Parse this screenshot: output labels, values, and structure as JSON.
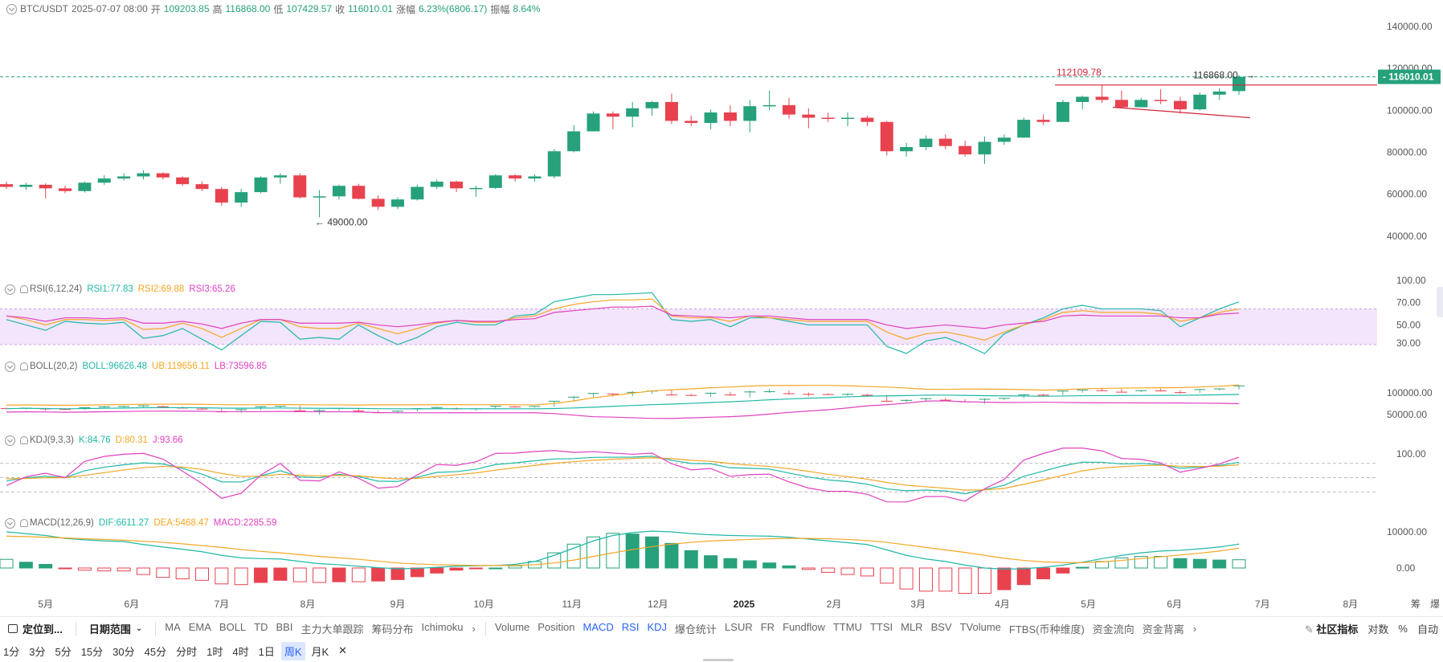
{
  "header": {
    "symbol": "BTC/USDT",
    "date": "2025-07-07 08:00",
    "open_label": "开",
    "open": "109203.85",
    "high_label": "高",
    "high": "116868.00",
    "low_label": "低",
    "low": "107429.57",
    "close_label": "收",
    "close": "116010.01",
    "change_label": "涨幅",
    "change": "6.23%(6806.17)",
    "amplitude_label": "振幅",
    "amplitude": "8.64%"
  },
  "price_axis": {
    "ticks": [
      "140000.00",
      "120000.00",
      "100000.00",
      "80000.00",
      "60000.00",
      "40000.00"
    ],
    "current_tag": "116010.01"
  },
  "annotations": {
    "high_point": "116868.00",
    "low_point": "49000.00",
    "line_level": "112109.78"
  },
  "indicators": {
    "rsi": {
      "name": "RSI(6,12,24)",
      "rsi1": "RSI1:77.83",
      "rsi2": "RSI2:69.88",
      "rsi3": "RSI3:65.26",
      "ticks": [
        "100.00",
        "70.00",
        "50.00",
        "30.00"
      ]
    },
    "boll": {
      "name": "BOLL(20,2)",
      "boll": "BOLL:96626.48",
      "ub": "UB:119656.11",
      "lb": "LB:73596.85",
      "ticks": [
        "100000.00",
        "50000.00"
      ]
    },
    "kdj": {
      "name": "KDJ(9,3,3)",
      "k": "K:84.76",
      "d": "D:80.31",
      "j": "J:93.66",
      "ticks": [
        "100.00"
      ]
    },
    "macd": {
      "name": "MACD(12,26,9)",
      "dif": "DIF:6611.27",
      "dea": "DEA:5468.47",
      "macd": "MACD:2285.59",
      "ticks": [
        "10000.00",
        "0.00"
      ]
    }
  },
  "time_axis": [
    "5月",
    "6月",
    "7月",
    "8月",
    "9月",
    "10月",
    "11月",
    "12月",
    "2025",
    "2月",
    "3月",
    "4月",
    "5月",
    "6月",
    "7月",
    "8月"
  ],
  "time_axis_right": [
    "筹",
    "爆"
  ],
  "toolbar": {
    "locate": "定位到...",
    "date_range": "日期范围",
    "overlays": [
      "MA",
      "EMA",
      "BOLL",
      "TD",
      "BBI",
      "主力大单跟踪",
      "筹码分布",
      "Ichimoku"
    ],
    "sub_indicators": [
      "Volume",
      "Position",
      "MACD",
      "RSI",
      "KDJ",
      "爆仓统计",
      "LSUR",
      "FR",
      "Fundflow",
      "TTMU",
      "TTSI",
      "MLR",
      "BSV",
      "TVolume",
      "FTBS(币种维度)",
      "资金流向",
      "资金背离"
    ],
    "active_sub": [
      "MACD",
      "RSI",
      "KDJ"
    ],
    "community": "社区指标",
    "log": "对数",
    "percent": "%",
    "auto": "自动"
  },
  "periods": [
    "1分",
    "3分",
    "5分",
    "15分",
    "30分",
    "45分",
    "分时",
    "1时",
    "4时",
    "1日",
    "周K",
    "月K"
  ],
  "active_period": "周K",
  "colors": {
    "up": "#26a17b",
    "down": "#e8424f",
    "rsi1": "#1fb8a6",
    "rsi2": "#f5a623",
    "rsi3": "#e040c0",
    "rsi_band": "#f3e5fb",
    "current_tag": "#26a17b",
    "level_line": "#d0243a"
  },
  "chart_data": {
    "type": "candlestick",
    "interval": "weekly",
    "ohlc": [
      [
        64800,
        66000,
        62500,
        63500
      ],
      [
        63500,
        65500,
        62000,
        64500
      ],
      [
        64500,
        65200,
        58000,
        62800
      ],
      [
        62800,
        64000,
        60500,
        61500
      ],
      [
        61500,
        66000,
        60800,
        65500
      ],
      [
        65500,
        69000,
        64500,
        67500
      ],
      [
        67500,
        70000,
        66500,
        68500
      ],
      [
        68500,
        71500,
        67000,
        70000
      ],
      [
        70000,
        70500,
        67000,
        68000
      ],
      [
        68000,
        68500,
        64000,
        64800
      ],
      [
        64800,
        66000,
        61500,
        62500
      ],
      [
        62500,
        63500,
        54500,
        56000
      ],
      [
        56000,
        62500,
        54000,
        61000
      ],
      [
        61000,
        68500,
        60500,
        68000
      ],
      [
        68000,
        70000,
        65000,
        69000
      ],
      [
        69000,
        70000,
        58000,
        58500
      ],
      [
        58500,
        62000,
        49000,
        59000
      ],
      [
        59000,
        64500,
        57500,
        64000
      ],
      [
        64000,
        65000,
        57500,
        57800
      ],
      [
        57800,
        59500,
        52500,
        54000
      ],
      [
        54000,
        58500,
        53000,
        57500
      ],
      [
        57500,
        64500,
        57000,
        63500
      ],
      [
        63500,
        67000,
        62500,
        66000
      ],
      [
        66000,
        66500,
        61000,
        62800
      ],
      [
        62800,
        64000,
        58800,
        63000
      ],
      [
        63000,
        69500,
        62500,
        69000
      ],
      [
        69000,
        69500,
        66000,
        67500
      ],
      [
        67500,
        69500,
        66000,
        68500
      ],
      [
        68500,
        81500,
        67500,
        80500
      ],
      [
        80500,
        93000,
        80000,
        90000
      ],
      [
        90000,
        99500,
        90000,
        98500
      ],
      [
        98500,
        99500,
        91000,
        97000
      ],
      [
        97000,
        104000,
        92000,
        101000
      ],
      [
        101000,
        104500,
        97500,
        104000
      ],
      [
        104000,
        108000,
        93500,
        95000
      ],
      [
        95000,
        97500,
        92500,
        94000
      ],
      [
        94000,
        100500,
        91000,
        99000
      ],
      [
        99000,
        102500,
        92500,
        95000
      ],
      [
        95000,
        105000,
        89500,
        102000
      ],
      [
        102000,
        109500,
        100000,
        102500
      ],
      [
        102500,
        106000,
        96000,
        98000
      ],
      [
        98000,
        101000,
        91500,
        96500
      ],
      [
        96500,
        99000,
        94500,
        96000
      ],
      [
        96000,
        99000,
        92500,
        96500
      ],
      [
        96500,
        97500,
        92500,
        94500
      ],
      [
        94500,
        95000,
        78500,
        80500
      ],
      [
        80500,
        84500,
        78000,
        82500
      ],
      [
        82500,
        88000,
        81000,
        86500
      ],
      [
        86500,
        88500,
        81500,
        83000
      ],
      [
        83000,
        85500,
        78000,
        79000
      ],
      [
        79000,
        87500,
        74500,
        85000
      ],
      [
        85000,
        88500,
        83500,
        87000
      ],
      [
        87000,
        96500,
        87000,
        95500
      ],
      [
        95500,
        98000,
        93000,
        94500
      ],
      [
        94500,
        105000,
        94500,
        104000
      ],
      [
        104000,
        107000,
        100500,
        106500
      ],
      [
        106500,
        112000,
        103500,
        105000
      ],
      [
        105000,
        109500,
        101000,
        101500
      ],
      [
        101500,
        106000,
        101500,
        105000
      ],
      [
        105000,
        110000,
        103000,
        104500
      ],
      [
        104500,
        106500,
        98500,
        100500
      ],
      [
        100500,
        108500,
        100000,
        107500
      ],
      [
        107500,
        110500,
        105000,
        109000
      ],
      [
        109203.85,
        116868,
        107429.57,
        116010.01
      ]
    ],
    "rsi1": [
      58,
      52,
      46,
      56,
      54,
      53,
      55,
      37,
      40,
      48,
      36,
      24,
      40,
      56,
      55,
      36,
      38,
      36,
      52,
      40,
      30,
      38,
      50,
      55,
      52,
      52,
      62,
      64,
      78,
      82,
      86,
      86,
      87,
      88,
      58,
      56,
      58,
      50,
      60,
      60,
      56,
      52,
      52,
      52,
      52,
      28,
      20,
      34,
      38,
      30,
      20,
      42,
      52,
      60,
      70,
      74,
      70,
      70,
      70,
      68,
      50,
      60,
      70,
      77.83
    ],
    "rsi2": [
      62,
      58,
      52,
      58,
      58,
      57,
      58,
      47,
      48,
      54,
      48,
      38,
      48,
      58,
      58,
      50,
      48,
      48,
      54,
      48,
      42,
      48,
      54,
      57,
      55,
      55,
      60,
      62,
      70,
      75,
      78,
      80,
      80,
      81,
      62,
      60,
      60,
      56,
      62,
      60,
      58,
      56,
      56,
      56,
      56,
      44,
      36,
      42,
      44,
      40,
      35,
      44,
      52,
      58,
      66,
      68,
      66,
      66,
      66,
      64,
      56,
      60,
      66,
      69.88
    ],
    "rsi3": [
      62,
      60,
      56,
      60,
      60,
      59,
      60,
      54,
      54,
      56,
      53,
      48,
      54,
      58,
      58,
      54,
      54,
      54,
      55,
      52,
      50,
      52,
      55,
      57,
      56,
      56,
      58,
      59,
      66,
      68,
      70,
      72,
      72,
      73,
      63,
      62,
      61,
      60,
      62,
      62,
      60,
      58,
      58,
      58,
      58,
      52,
      48,
      50,
      52,
      50,
      48,
      52,
      54,
      56,
      62,
      63,
      62,
      62,
      62,
      62,
      60,
      60,
      64,
      65.26
    ],
    "macd_dif": [
      10000,
      9500,
      9000,
      8200,
      7800,
      7500,
      7300,
      6500,
      5800,
      5200,
      4500,
      3500,
      2800,
      2600,
      2500,
      1800,
      1200,
      900,
      500,
      100,
      -200,
      -100,
      200,
      500,
      600,
      700,
      1000,
      1800,
      3500,
      5500,
      7500,
      9000,
      9800,
      10200,
      10000,
      9500,
      9200,
      9000,
      8900,
      8800,
      8500,
      8000,
      7500,
      7000,
      6500,
      5000,
      3500,
      2500,
      1800,
      800,
      0,
      -300,
      -200,
      200,
      800,
      1600,
      2600,
      3500,
      4200,
      4700,
      4900,
      5300,
      5800,
      6611.27
    ],
    "macd_dea": [
      8800,
      8700,
      8500,
      8300,
      8100,
      7900,
      7700,
      7400,
      7100,
      6700,
      6200,
      5700,
      5100,
      4600,
      4200,
      3700,
      3200,
      2800,
      2400,
      1900,
      1400,
      1100,
      900,
      800,
      700,
      700,
      700,
      900,
      1400,
      2200,
      3200,
      4200,
      5100,
      5900,
      6600,
      7100,
      7500,
      7700,
      7900,
      8100,
      8200,
      8200,
      8100,
      7900,
      7600,
      7100,
      6400,
      5700,
      5000,
      4300,
      3500,
      2700,
      2100,
      1700,
      1500,
      1500,
      1700,
      2100,
      2600,
      3100,
      3600,
      4100,
      4700,
      5468.47
    ],
    "macd_hist": [
      2400,
      1600,
      1000,
      -200,
      -600,
      -800,
      -800,
      -1800,
      -2600,
      -3000,
      -3400,
      -4400,
      -4600,
      -4000,
      -3400,
      -3800,
      -4000,
      -3800,
      -3800,
      -3600,
      -3200,
      -2400,
      -1400,
      -600,
      -200,
      0,
      600,
      1800,
      4200,
      6600,
      8600,
      9600,
      9400,
      8600,
      6800,
      4800,
      3400,
      2600,
      2000,
      1400,
      600,
      -400,
      -1200,
      -1800,
      -2200,
      -4200,
      -5800,
      -6400,
      -6400,
      -7000,
      -7000,
      -6000,
      -4600,
      -3000,
      -1400,
      200,
      1800,
      2800,
      3200,
      3200,
      2600,
      2400,
      2200,
      2285.59
    ],
    "y_range_price": [
      30000,
      145000
    ]
  }
}
